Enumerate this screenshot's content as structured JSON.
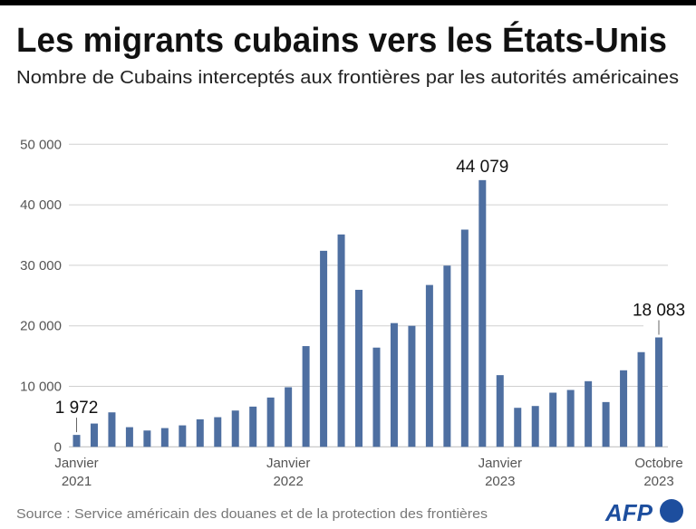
{
  "header": {
    "title": "Les migrants cubains vers les États-Unis",
    "subtitle": "Nombre de Cubains interceptés aux frontières par les autorités américaines"
  },
  "footer": {
    "source": "Source : Service américain des douanes et de la protection des frontières",
    "logo": "AFP"
  },
  "colors": {
    "bar": "#4e6fa1",
    "grid": "#d0d0d0",
    "logo": "#1d4e9e"
  },
  "chart_data": {
    "type": "bar",
    "title": "Les migrants cubains vers les États-Unis",
    "subtitle": "Nombre de Cubains interceptés aux frontières par les autorités américaines",
    "xlabel": "",
    "ylabel": "",
    "ylim": [
      0,
      50000
    ],
    "grid": true,
    "yticks": [
      0,
      10000,
      20000,
      30000,
      40000,
      50000
    ],
    "ytick_labels": [
      "0",
      "10 000",
      "20 000",
      "30 000",
      "40 000",
      "50 000"
    ],
    "x_tick_labels": [
      {
        "index": 0,
        "line1": "Janvier",
        "line2": "2021"
      },
      {
        "index": 12,
        "line1": "Janvier",
        "line2": "2022"
      },
      {
        "index": 24,
        "line1": "Janvier",
        "line2": "2023"
      },
      {
        "index": 33,
        "line1": "Octobre",
        "line2": "2023"
      }
    ],
    "categories": [
      "2021-01",
      "2021-02",
      "2021-03",
      "2021-04",
      "2021-05",
      "2021-06",
      "2021-07",
      "2021-08",
      "2021-09",
      "2021-10",
      "2021-11",
      "2021-12",
      "2022-01",
      "2022-02",
      "2022-03",
      "2022-04",
      "2022-05",
      "2022-06",
      "2022-07",
      "2022-08",
      "2022-09",
      "2022-10",
      "2022-11",
      "2022-12",
      "2023-01",
      "2023-02",
      "2023-03",
      "2023-04",
      "2023-05",
      "2023-06",
      "2023-07",
      "2023-08",
      "2023-09",
      "2023-10"
    ],
    "values": [
      1972,
      3850,
      5700,
      3250,
      2700,
      3100,
      3550,
      4550,
      4900,
      6000,
      6650,
      8150,
      9850,
      16650,
      32400,
      35100,
      25950,
      16400,
      20450,
      20000,
      26750,
      29950,
      35900,
      44079,
      11850,
      6450,
      6750,
      8950,
      9400,
      10850,
      7400,
      12650,
      15650,
      18083
    ],
    "annotations": [
      {
        "index": 0,
        "text": "1 972"
      },
      {
        "index": 23,
        "text": "44 079"
      },
      {
        "index": 33,
        "text": "18 083"
      }
    ]
  }
}
